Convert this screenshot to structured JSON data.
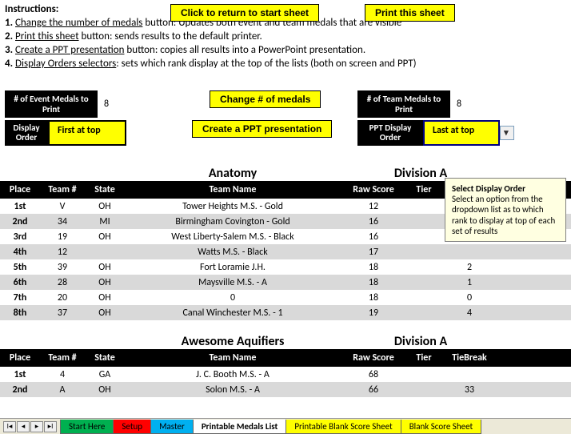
{
  "buttons": {
    "return_start": "Click to return to start sheet",
    "print_sheet": "Print this sheet",
    "change_medals": "Change # of medals",
    "create_ppt": "Create a PPT presentation"
  },
  "instructions": {
    "title": "Instructions:",
    "lines": [
      {
        "num": "1.",
        "u": "Change the number of medals",
        "rest": " button: Updates both event and team medals that are visible"
      },
      {
        "num": "2.",
        "u": "Print this sheet",
        "rest": " button:  sends results to the default printer."
      },
      {
        "num": "3.",
        "u": "Create a PPT presentation",
        "rest": " button:  copies all results into a PowerPoint presentation."
      },
      {
        "num": "4.",
        "u": "Display Orders selectors",
        "rest": ": sets which rank display at the top of the lists (both on screen and PPT)"
      }
    ]
  },
  "panels": {
    "event_medals_label": "# of Event Medals to Print",
    "event_medals_value": "8",
    "team_medals_label": "# of Team Medals to Print",
    "team_medals_value": "8",
    "display_order_label": "Display Order",
    "ppt_display_order_label": "PPT Display Order",
    "first_at_top": "First at top",
    "last_at_top": "Last at top"
  },
  "tooltip": {
    "title": "Select Display Order",
    "body": "Select an option from the dropdown list as to which rank to display at top of each set of results"
  },
  "columns": {
    "place": "Place",
    "team": "Team #",
    "state": "State",
    "name": "Team Name",
    "raw": "Raw Score",
    "tier": "Tier",
    "tb": "TieBreak"
  },
  "sections": [
    {
      "left_title": "Anatomy",
      "right_title": "Division A",
      "rows": [
        {
          "place": "1st",
          "team": "V",
          "state": "OH",
          "name": "Tower Heights M.S. - Gold",
          "raw": "12",
          "tier": "",
          "tb": ""
        },
        {
          "place": "2nd",
          "team": "34",
          "state": "MI",
          "name": "Birmingham Covington - Gold",
          "raw": "16",
          "tier": "",
          "tb": ""
        },
        {
          "place": "3rd",
          "team": "19",
          "state": "OH",
          "name": "West Liberty-Salem M.S. - Black",
          "raw": "16",
          "tier": "",
          "tb": ""
        },
        {
          "place": "4th",
          "team": "12",
          "state": "",
          "name": "Watts M.S. - Black",
          "raw": "17",
          "tier": "",
          "tb": ""
        },
        {
          "place": "5th",
          "team": "39",
          "state": "OH",
          "name": "Fort Loramie J.H.",
          "raw": "18",
          "tier": "",
          "tb": "2"
        },
        {
          "place": "6th",
          "team": "28",
          "state": "OH",
          "name": "Maysville M.S. - A",
          "raw": "18",
          "tier": "",
          "tb": "1"
        },
        {
          "place": "7th",
          "team": "20",
          "state": "OH",
          "name": "0",
          "raw": "18",
          "tier": "",
          "tb": "0"
        },
        {
          "place": "8th",
          "team": "37",
          "state": "OH",
          "name": "Canal Winchester M.S. - 1",
          "raw": "19",
          "tier": "",
          "tb": "4"
        }
      ]
    },
    {
      "left_title": "Awesome Aquifiers",
      "right_title": "Division A",
      "rows": [
        {
          "place": "1st",
          "team": "4",
          "state": "GA",
          "name": "J. C. Booth M.S. - A",
          "raw": "68",
          "tier": "",
          "tb": ""
        },
        {
          "place": "2nd",
          "team": "A",
          "state": "OH",
          "name": "Solon M.S. - A",
          "raw": "66",
          "tier": "",
          "tb": "33"
        }
      ]
    }
  ],
  "tabs": {
    "items": [
      {
        "label": "Start Here",
        "color": "#00b050"
      },
      {
        "label": "Setup",
        "color": "#ff0000"
      },
      {
        "label": "Master",
        "color": "#00b0f0"
      },
      {
        "label": "Printable Medals List",
        "color": "#ffffff",
        "active": true
      },
      {
        "label": "Printable Blank Score Sheet",
        "color": "#ffff00"
      },
      {
        "label": "Blank Score Sheet",
        "color": "#ffff00"
      }
    ]
  }
}
